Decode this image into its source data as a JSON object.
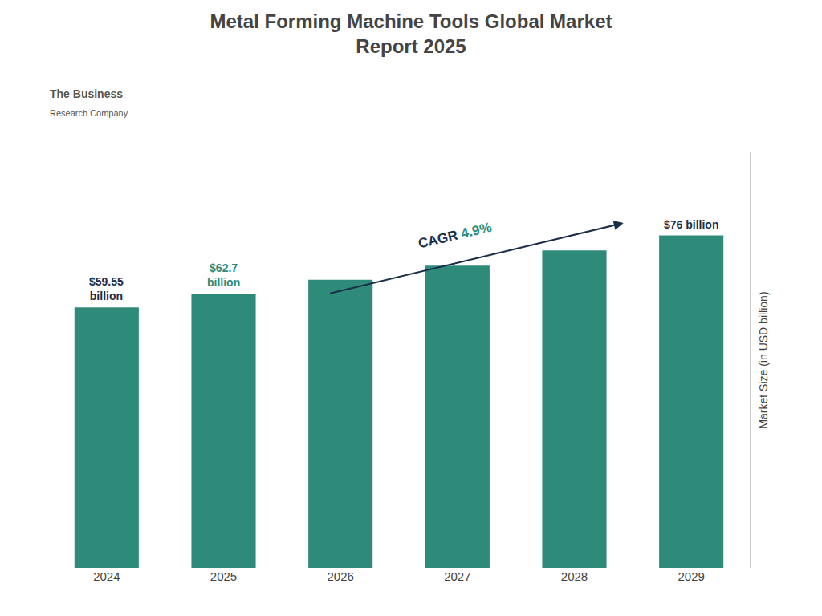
{
  "chart_data": {
    "type": "bar",
    "title": "Metal Forming Machine Tools Global Market\nReport 2025",
    "categories": [
      "2024",
      "2025",
      "2026",
      "2027",
      "2028",
      "2029"
    ],
    "values": [
      59.55,
      62.7,
      65.9,
      69.1,
      72.6,
      76.0
    ],
    "color": "#2e8b7a",
    "ylabel": "Market Size (in USD billion)",
    "ylim": [
      0,
      95
    ],
    "grid": false,
    "tick_labels": "x",
    "annotations": [
      {
        "text": "$59.55\nbillion",
        "x": "2024",
        "color": "#1a2e4a"
      },
      {
        "text": "$62.7\nbillion",
        "x": "2025",
        "color": "#2e8b7a"
      },
      {
        "text": "$76 billion",
        "x": "2029",
        "color": "#1a2e4a"
      },
      {
        "text": "CAGR",
        "color": "#1a2e4a",
        "arrow": true
      },
      {
        "text": "4.9%",
        "color": "#2e8b7a",
        "arrow": true
      }
    ],
    "logo": [
      "The Business",
      "Research Company"
    ]
  }
}
